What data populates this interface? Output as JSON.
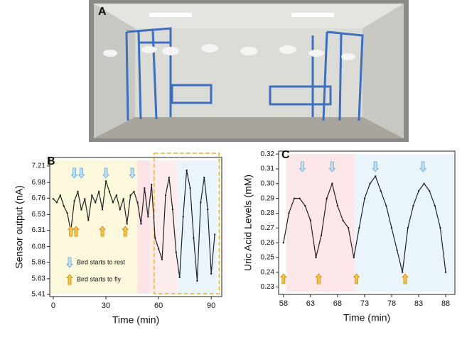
{
  "photo": {
    "label": "A"
  },
  "chart_data": [
    {
      "type": "line",
      "label": "B",
      "x_label": "Time (min)",
      "y_label": "Sensor output (nA)",
      "xlim": [
        -2,
        96
      ],
      "ylim": [
        5.38,
        7.33
      ],
      "xticks": [
        0,
        30,
        60,
        90
      ],
      "yticks": [
        5.41,
        5.63,
        5.86,
        6.08,
        6.31,
        6.53,
        6.76,
        6.98,
        7.21
      ],
      "regions": [
        {
          "x": [
            -2,
            47.9
          ],
          "color": "#fbf8dc"
        },
        {
          "x": [
            47.9,
            55
          ],
          "color": "#fbe3e6"
        },
        {
          "x": [
            55,
            71
          ],
          "color": "#fcecec"
        },
        {
          "x": [
            71,
            93.5
          ],
          "color": "#e9f4fb"
        }
      ],
      "highlight": {
        "x": [
          57.5,
          94.5
        ],
        "color": "#f0b020"
      },
      "rest_times": [
        12,
        16,
        30,
        45
      ],
      "fly_times": [
        10,
        13,
        28,
        41
      ],
      "legend": {
        "rest": "Bird starts to rest",
        "fly": "Bird starts to fly"
      },
      "series": [
        {
          "color": "#222222",
          "x": [
            0,
            2,
            4,
            6,
            8,
            10,
            12,
            14,
            16,
            18,
            20,
            22,
            24,
            26,
            28,
            30,
            32,
            34,
            36,
            38,
            40,
            42,
            44,
            46,
            48,
            50,
            52,
            54,
            56,
            58,
            60,
            62,
            64,
            66,
            68,
            70,
            72,
            74,
            76,
            78,
            80,
            82,
            84,
            86,
            88,
            90,
            92
          ],
          "values": [
            6.75,
            6.7,
            6.8,
            6.65,
            6.55,
            6.3,
            6.72,
            6.85,
            6.6,
            6.75,
            6.45,
            6.8,
            6.7,
            6.85,
            6.6,
            7.0,
            6.85,
            6.7,
            6.8,
            6.6,
            6.75,
            6.4,
            6.8,
            6.85,
            6.7,
            6.4,
            6.9,
            6.5,
            6.95,
            6.2,
            6.05,
            5.9,
            6.8,
            7.05,
            6.6,
            6.0,
            5.65,
            6.5,
            7.15,
            6.9,
            6.2,
            5.6,
            6.7,
            7.05,
            6.6,
            5.7,
            6.25
          ]
        }
      ]
    },
    {
      "type": "line",
      "label": "C",
      "x_label": "Time (min)",
      "y_label": "Uric Acid Levels (mM)",
      "xlim": [
        57.1,
        89.7
      ],
      "ylim": [
        0.225,
        0.322
      ],
      "xticks": [
        58,
        63,
        68,
        73,
        78,
        83,
        88
      ],
      "yticks": [
        0.23,
        0.24,
        0.25,
        0.26,
        0.27,
        0.28,
        0.29,
        {
          "value": 0.3,
          "label": "0.30"
        },
        0.31,
        0.32
      ],
      "regions": [
        {
          "x": [
            58.5,
            71.2
          ],
          "color": "#fbe6e8"
        },
        {
          "x": [
            71.2,
            89.5
          ],
          "color": "#e9f4fb"
        }
      ],
      "rest_times": [
        61.5,
        67,
        75,
        83.8
      ],
      "fly_times": [
        58,
        64.5,
        71.5,
        80.5
      ],
      "series": [
        {
          "color": "#222222",
          "x": [
            58,
            59,
            60,
            61,
            62,
            63,
            64,
            65,
            66,
            67,
            68,
            69,
            70,
            71,
            72,
            73,
            74,
            75,
            76,
            77,
            78,
            79,
            80,
            81,
            82,
            83,
            84,
            85,
            86,
            87,
            88
          ],
          "values": [
            0.26,
            0.28,
            0.29,
            0.29,
            0.285,
            0.275,
            0.25,
            0.265,
            0.29,
            0.3,
            0.285,
            0.275,
            0.27,
            0.25,
            0.27,
            0.29,
            0.3,
            0.305,
            0.295,
            0.285,
            0.27,
            0.255,
            0.24,
            0.27,
            0.285,
            0.295,
            0.3,
            0.295,
            0.285,
            0.27,
            0.24
          ]
        }
      ]
    }
  ]
}
